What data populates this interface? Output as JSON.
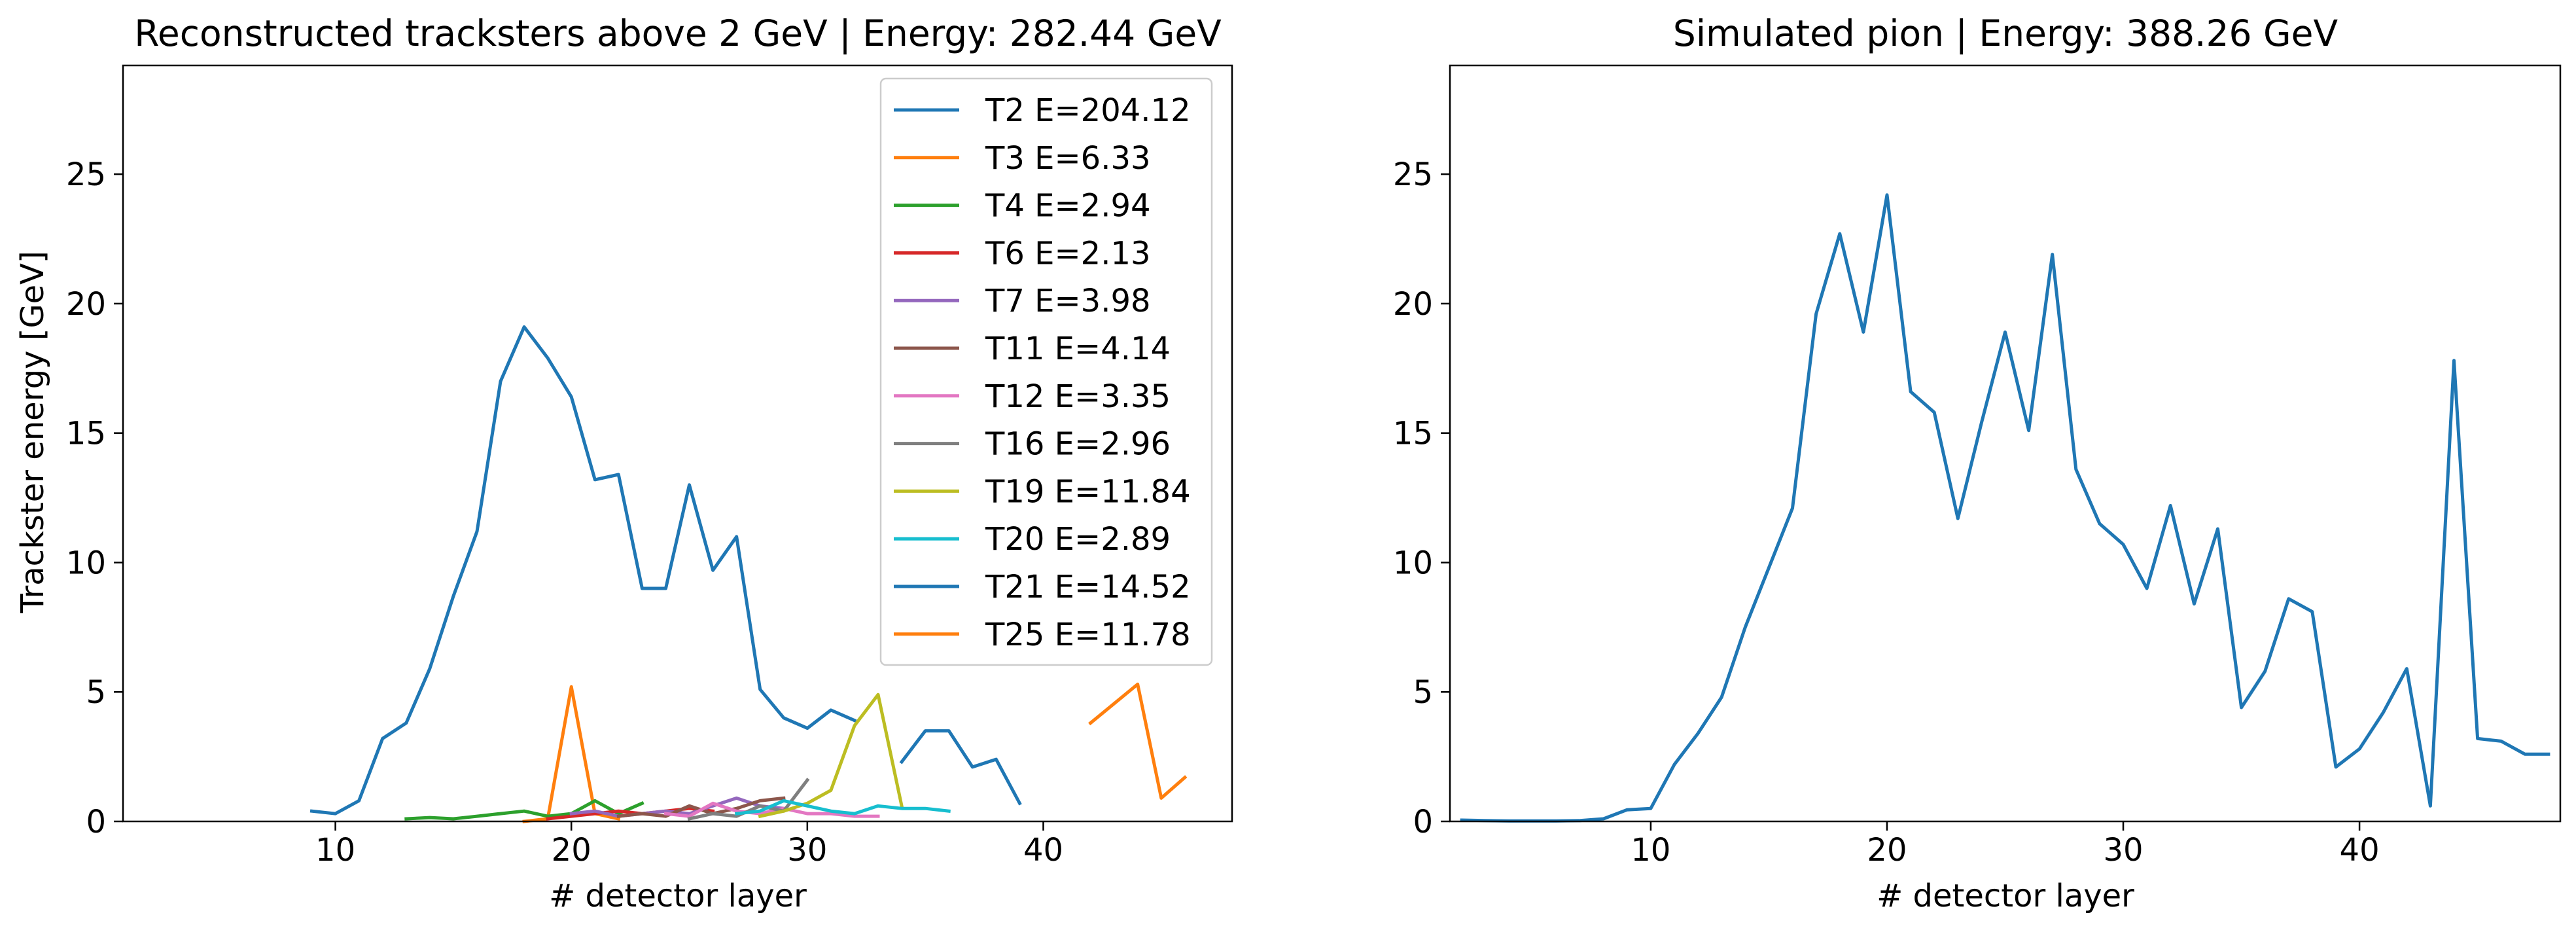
{
  "chart_data": [
    {
      "type": "line",
      "title": "Reconstructed tracksters above 2 GeV | Energy: 282.44 GeV",
      "xlabel": "# detector layer",
      "ylabel": "Trackster energy [GeV]",
      "xlim": [
        1,
        48
      ],
      "ylim": [
        0,
        29.2
      ],
      "xticks": [
        10,
        20,
        30,
        40
      ],
      "yticks": [
        0,
        5,
        10,
        15,
        20,
        25
      ],
      "grid": false,
      "legend": "top-right",
      "series": [
        {
          "name": "T2 E=204.12",
          "color": "#1f77b4",
          "x": [
            9,
            10,
            11,
            12,
            13,
            14,
            15,
            16,
            17,
            18,
            19,
            20,
            21,
            22,
            23,
            24,
            25,
            26,
            27,
            28,
            29,
            30,
            31,
            32
          ],
          "y": [
            0.4,
            0.3,
            0.8,
            3.2,
            3.8,
            5.9,
            8.7,
            11.2,
            17.0,
            19.1,
            17.9,
            16.4,
            13.2,
            13.4,
            9.0,
            9.0,
            13.0,
            9.7,
            11.0,
            5.1,
            4.0,
            3.6,
            4.3,
            3.9
          ]
        },
        {
          "name": "T3 E=6.33",
          "color": "#ff7f0e",
          "x": [
            18,
            19,
            20,
            21,
            22
          ],
          "y": [
            0.0,
            0.1,
            5.2,
            0.3,
            0.1
          ]
        },
        {
          "name": "T4 E=2.94",
          "color": "#2ca02c",
          "x": [
            13,
            14,
            15,
            16,
            17,
            18,
            19,
            20,
            21,
            22,
            23
          ],
          "y": [
            0.1,
            0.15,
            0.1,
            0.2,
            0.3,
            0.4,
            0.2,
            0.3,
            0.8,
            0.3,
            0.7
          ]
        },
        {
          "name": "T6 E=2.13",
          "color": "#d62728",
          "x": [
            19,
            20,
            21,
            22,
            23,
            24,
            25,
            26
          ],
          "y": [
            0.1,
            0.2,
            0.3,
            0.4,
            0.3,
            0.4,
            0.5,
            0.4
          ]
        },
        {
          "name": "T7 E=3.98",
          "color": "#9467bd",
          "x": [
            20,
            21,
            22,
            23,
            24,
            25,
            26,
            27,
            28,
            29
          ],
          "y": [
            0.3,
            0.4,
            0.2,
            0.3,
            0.4,
            0.3,
            0.6,
            0.9,
            0.6,
            0.5
          ]
        },
        {
          "name": "T11 E=4.14",
          "color": "#8c564b",
          "x": [
            22,
            23,
            24,
            25,
            26,
            27,
            28,
            29
          ],
          "y": [
            0.2,
            0.3,
            0.2,
            0.6,
            0.3,
            0.5,
            0.8,
            0.9
          ]
        },
        {
          "name": "T12 E=3.35",
          "color": "#e377c2",
          "x": [
            24,
            25,
            26,
            27,
            28,
            29,
            30,
            31,
            32,
            33
          ],
          "y": [
            0.3,
            0.2,
            0.7,
            0.4,
            0.3,
            0.5,
            0.3,
            0.3,
            0.2,
            0.2
          ]
        },
        {
          "name": "T16 E=2.96",
          "color": "#7f7f7f",
          "x": [
            25,
            26,
            27,
            28,
            29,
            30
          ],
          "y": [
            0.1,
            0.3,
            0.2,
            0.6,
            0.4,
            1.6
          ]
        },
        {
          "name": "T19 E=11.84",
          "color": "#bcbd22",
          "x": [
            28,
            29,
            30,
            31,
            32,
            33,
            34
          ],
          "y": [
            0.2,
            0.4,
            0.7,
            1.2,
            3.7,
            4.9,
            0.6
          ]
        },
        {
          "name": "T20 E=2.89",
          "color": "#17becf",
          "x": [
            27,
            28,
            29,
            30,
            31,
            32,
            33,
            34,
            35,
            36
          ],
          "y": [
            0.3,
            0.4,
            0.8,
            0.6,
            0.4,
            0.3,
            0.6,
            0.5,
            0.5,
            0.4
          ]
        },
        {
          "name": "T21 E=14.52",
          "color": "#1f77b4",
          "x": [
            34,
            35,
            36,
            37,
            38,
            39
          ],
          "y": [
            2.3,
            3.5,
            3.5,
            2.1,
            2.4,
            0.7
          ]
        },
        {
          "name": "T25 E=11.78",
          "color": "#ff7f0e",
          "x": [
            42,
            44,
            45,
            46
          ],
          "y": [
            3.8,
            5.3,
            0.9,
            1.7
          ]
        }
      ]
    },
    {
      "type": "line",
      "title": "Simulated pion | Energy: 388.26 GeV",
      "xlabel": "# detector layer",
      "ylabel": "",
      "xlim": [
        1.5,
        48.5
      ],
      "ylim": [
        0,
        29.2
      ],
      "xticks": [
        10,
        20,
        30,
        40
      ],
      "yticks": [
        0,
        5,
        10,
        15,
        20,
        25
      ],
      "grid": false,
      "series": [
        {
          "color": "#1f77b4",
          "x": [
            2,
            3,
            4,
            5,
            6,
            7,
            8,
            9,
            10,
            11,
            12,
            13,
            14,
            15,
            16,
            17,
            18,
            19,
            20,
            21,
            22,
            23,
            24,
            25,
            26,
            27,
            28,
            29,
            30,
            31,
            32,
            33,
            34,
            35,
            36,
            37,
            38,
            39,
            40,
            41,
            42,
            43,
            44,
            45,
            46,
            47,
            48
          ],
          "y": [
            0.05,
            0.03,
            0.02,
            0.02,
            0.02,
            0.03,
            0.1,
            0.45,
            0.5,
            2.2,
            3.4,
            4.8,
            7.5,
            9.8,
            12.1,
            19.6,
            22.7,
            18.9,
            24.2,
            16.6,
            15.8,
            11.7,
            15.4,
            18.9,
            15.1,
            21.9,
            13.6,
            11.5,
            10.7,
            9.0,
            12.2,
            8.4,
            11.3,
            4.4,
            5.8,
            8.6,
            8.1,
            2.1,
            2.8,
            4.2,
            5.9,
            0.6,
            17.8,
            3.2,
            3.1,
            2.6,
            2.6
          ]
        }
      ]
    }
  ]
}
